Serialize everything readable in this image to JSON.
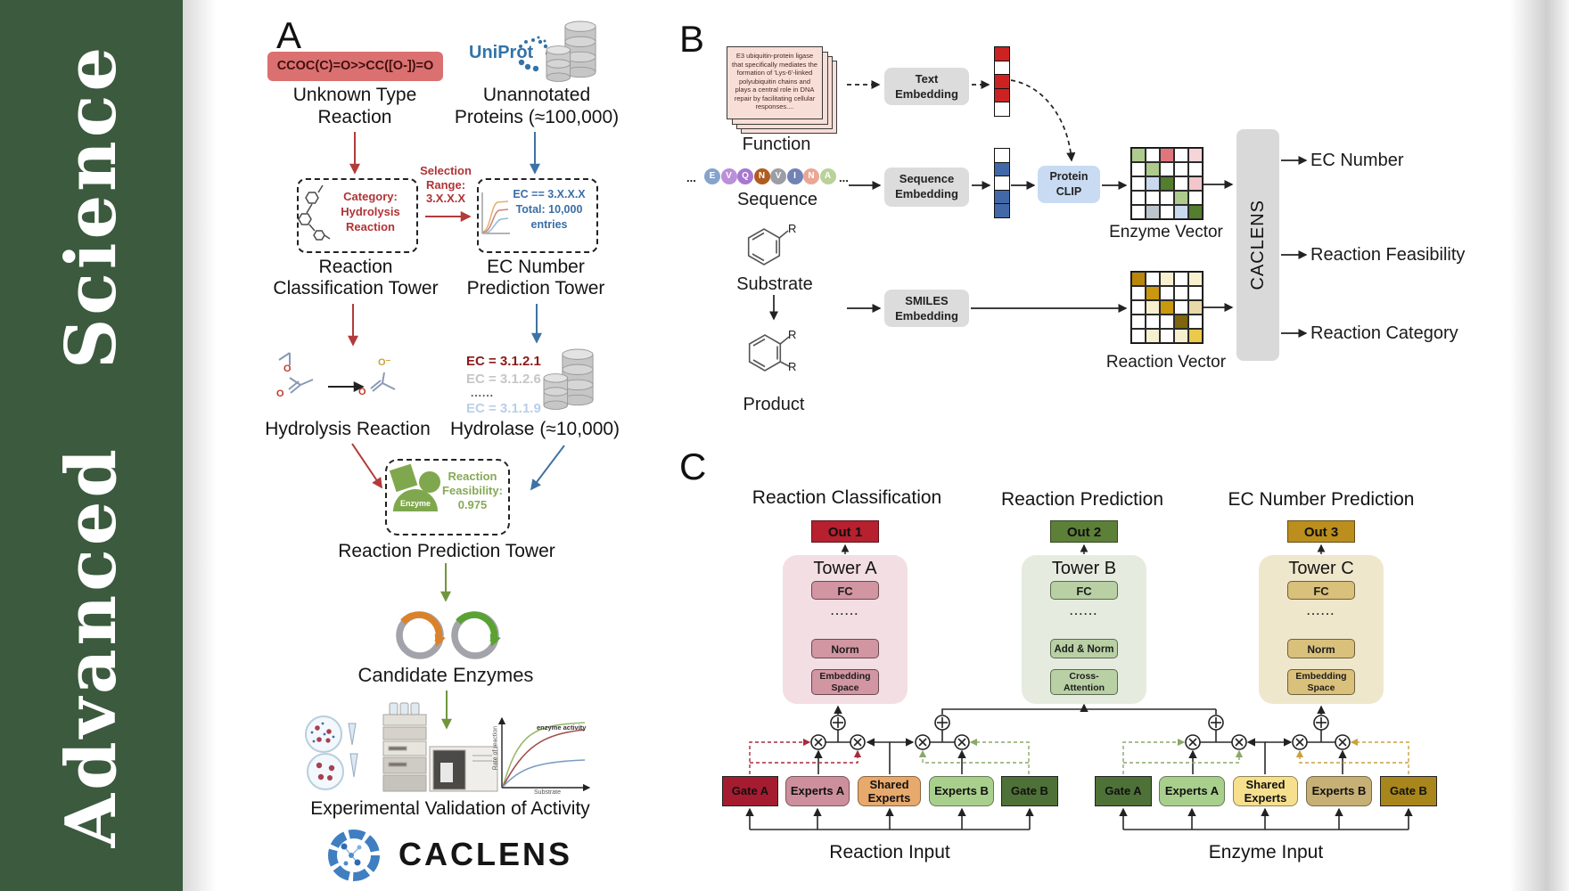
{
  "journal": {
    "name": "Advanced Science",
    "bar_color": "#3b5a3e"
  },
  "panelA": {
    "label": "A",
    "smiles": "CCOC(C)=O>>CC([O-])=O",
    "smiles_bg": "#db7070",
    "unknown_reaction": "Unknown Type\nReaction",
    "uniprot": "UniProt",
    "unannotated": "Unannotated\nProteins (≈100,000)",
    "selection_range": "Selection\nRange:\n3.X.X.X",
    "category": "Category:\nHydrolysis\nReaction",
    "ec_filter": "EC == 3.X.X.X\nTotal: 10,000\nentries",
    "classification_tower": "Reaction\nClassification Tower",
    "ec_tower": "EC Number\nPrediction Tower",
    "ec_list": [
      {
        "text": "EC = 3.1.2.1",
        "color": "#8b1a1a"
      },
      {
        "text": "EC = 3.1.2.6",
        "color": "#c6c6c6"
      },
      {
        "text": "......",
        "color": "#444444"
      },
      {
        "text": "EC = 3.1.1.9",
        "color": "#b9cfe8"
      }
    ],
    "hydrolysis": "Hydrolysis Reaction",
    "hydrolase": "Hydrolase (≈10,000)",
    "enzyme_badge": "Enzyme",
    "feasibility": "Reaction\nFeasibility:\n0.975",
    "prediction_tower": "Reaction Prediction Tower",
    "candidate": "Candidate Enzymes",
    "activity_plot": {
      "curve_label": "enzyme activity",
      "ylabel": "Rate of reaction",
      "xlabel": "Substrate"
    },
    "validation": "Experimental Validation of Activity",
    "brand": "CACLENS",
    "atoms": {
      "o": "O",
      "o_minus": "O⁻"
    },
    "accents": {
      "red": "#b03335",
      "blue": "#3a6ea5",
      "green": "#87a958",
      "smiles_text": "#40100e",
      "uniprot_blue": "#3373a8"
    }
  },
  "panelB": {
    "label": "B",
    "function_card": "E3 ubiquitin-protein ligase that specifically mediates the formation of 'Lys-6'-linked polyubiquitin chains and plays a central role in DNA repair by facilitating cellular responses....",
    "function_label": "Function",
    "ellipsis": "...",
    "residues": [
      {
        "letter": "E",
        "color": "#85a3cb"
      },
      {
        "letter": "V",
        "color": "#bb8fd9"
      },
      {
        "letter": "Q",
        "color": "#a678cf"
      },
      {
        "letter": "N",
        "color": "#b05c20"
      },
      {
        "letter": "V",
        "color": "#9d9da5"
      },
      {
        "letter": "I",
        "color": "#7282b4"
      },
      {
        "letter": "N",
        "color": "#eaa795"
      },
      {
        "letter": "A",
        "color": "#b9d29a"
      }
    ],
    "sequence_label": "Sequence",
    "substrate_label": "Substrate",
    "product_label": "Product",
    "r_group": "R",
    "text_embedding": "Text\nEmbedding",
    "sequence_embedding": "Sequence\nEmbedding",
    "smiles_embedding": "SMILES\nEmbedding",
    "protein_clip": "Protein\nCLIP",
    "text_vector": [
      "#cc2222",
      "#ffffff",
      "#cc2222",
      "#cc2222",
      "#ffffff"
    ],
    "sequence_vector": [
      "#ffffff",
      "#4268a8",
      "#ffffff",
      "#4268a8",
      "#4268a8"
    ],
    "enzyme_vector_label": "Enzyme Vector",
    "reaction_vector_label": "Reaction Vector",
    "enzyme_grid": [
      "#aecb8d",
      "#ffffff",
      "#e0767c",
      "#ffffff",
      "#f6d5d9",
      "#ffffff",
      "#aecb8d",
      "#ffffff",
      "#ffffff",
      "#ffffff",
      "#ffffff",
      "#c9daef",
      "#537d2f",
      "#ffffff",
      "#f2c6cc",
      "#ffffff",
      "#ffffff",
      "#ffffff",
      "#aecb8d",
      "#ffffff",
      "#ffffff",
      "#bcc5cd",
      "#ffffff",
      "#c9daef",
      "#537d2f"
    ],
    "reaction_grid": [
      "#b8860b",
      "#ffffff",
      "#f7f0cf",
      "#ffffff",
      "#f7f0cf",
      "#ffffff",
      "#c9980f",
      "#ffffff",
      "#ffffff",
      "#ffffff",
      "#ffffff",
      "#f7f0cf",
      "#c9980f",
      "#ffffff",
      "#e8d9a8",
      "#ffffff",
      "#ffffff",
      "#ffffff",
      "#7e650e",
      "#ffffff",
      "#ffffff",
      "#f7f0cf",
      "#ffffff",
      "#f7f0cf",
      "#ecc94b"
    ],
    "caclens": "CACLENS",
    "outputs": [
      "EC Number",
      "Reaction Feasibility",
      "Reaction Category"
    ],
    "colors": {
      "embed_bg": "#dcdcdc",
      "clip_bg": "#c8dbf2"
    }
  },
  "panelC": {
    "label": "C",
    "columns": [
      {
        "heading": "Reaction Classification",
        "out": "Out 1",
        "tower": "Tower A",
        "blocks": [
          "FC",
          "......",
          "Norm",
          "Embedding\nSpace"
        ],
        "colors": {
          "out_bg": "#b6202f",
          "tower_bg": "#f3dee3",
          "block_bg": "#d295a2"
        }
      },
      {
        "heading": "Reaction Prediction",
        "out": "Out 2",
        "tower": "Tower B",
        "blocks": [
          "FC",
          "......",
          "Add & Norm",
          "Cross-\nAttention"
        ],
        "colors": {
          "out_bg": "#5d8038",
          "tower_bg": "#e5ecdf",
          "block_bg": "#b9d0a5"
        }
      },
      {
        "heading": "EC Number Prediction",
        "out": "Out 3",
        "tower": "Tower C",
        "blocks": [
          "FC",
          "......",
          "Norm",
          "Embedding\nSpace"
        ],
        "colors": {
          "out_bg": "#bb8e1d",
          "tower_bg": "#efe7cb",
          "block_bg": "#d9c07b"
        }
      }
    ],
    "moe_groups": [
      {
        "input_label": "Reaction Input",
        "boxes": [
          {
            "label": "Gate A",
            "bg": "#a51c30"
          },
          {
            "label": "Experts A",
            "bg": "#cc8f9b"
          },
          {
            "label": "Shared\nExperts",
            "bg": "#e8a96c"
          },
          {
            "label": "Experts B",
            "bg": "#a9cf8d"
          },
          {
            "label": "Gate B",
            "bg": "#4e7137"
          }
        ]
      },
      {
        "input_label": "Enzyme Input",
        "boxes": [
          {
            "label": "Gate A",
            "bg": "#4e7137"
          },
          {
            "label": "Experts A",
            "bg": "#a9cf8d"
          },
          {
            "label": "Shared\nExperts",
            "bg": "#f6e08e"
          },
          {
            "label": "Experts B",
            "bg": "#c7b075"
          },
          {
            "label": "Gate B",
            "bg": "#a8861c"
          }
        ]
      }
    ]
  }
}
